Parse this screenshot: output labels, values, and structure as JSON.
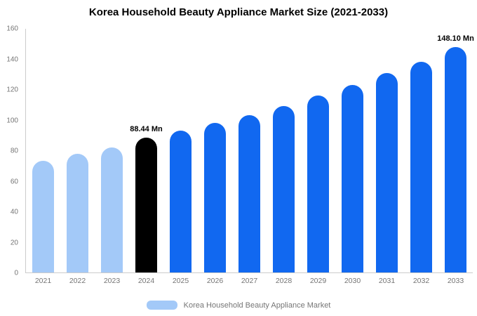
{
  "title": "Korea Household Beauty Appliance Market Size (2021-2033)",
  "legend": {
    "label": "Korea Household Beauty Appliance Market",
    "swatch_color": "#a3c9f8"
  },
  "colors": {
    "historical": "#a3c9f8",
    "base_year": "#000000",
    "forecast": "#1168f0",
    "axis_text": "#757575",
    "axis_line": "#cccccc"
  },
  "chart_data": {
    "type": "bar",
    "title": "Korea Household Beauty Appliance Market Size (2021-2033)",
    "categories": [
      "2021",
      "2022",
      "2023",
      "2024",
      "2025",
      "2026",
      "2027",
      "2028",
      "2029",
      "2030",
      "2031",
      "2032",
      "2033"
    ],
    "values": [
      73.5,
      78,
      82,
      88.44,
      93.3,
      98,
      103.5,
      109.5,
      116,
      123,
      131,
      138.5,
      148.1
    ],
    "bar_colors": [
      "#a3c9f8",
      "#a3c9f8",
      "#a3c9f8",
      "#000000",
      "#1168f0",
      "#1168f0",
      "#1168f0",
      "#1168f0",
      "#1168f0",
      "#1168f0",
      "#1168f0",
      "#1168f0",
      "#1168f0"
    ],
    "annotations": [
      {
        "category": "2024",
        "text": "88.44 Mn"
      },
      {
        "category": "2033",
        "text": "148.10 Mn"
      }
    ],
    "xlabel": "",
    "ylabel": "",
    "ylim": [
      0,
      160
    ],
    "ytick_step": 20,
    "grid": false,
    "legend_position": "bottom",
    "legend_entries": [
      "Korea Household Beauty Appliance Market"
    ]
  }
}
